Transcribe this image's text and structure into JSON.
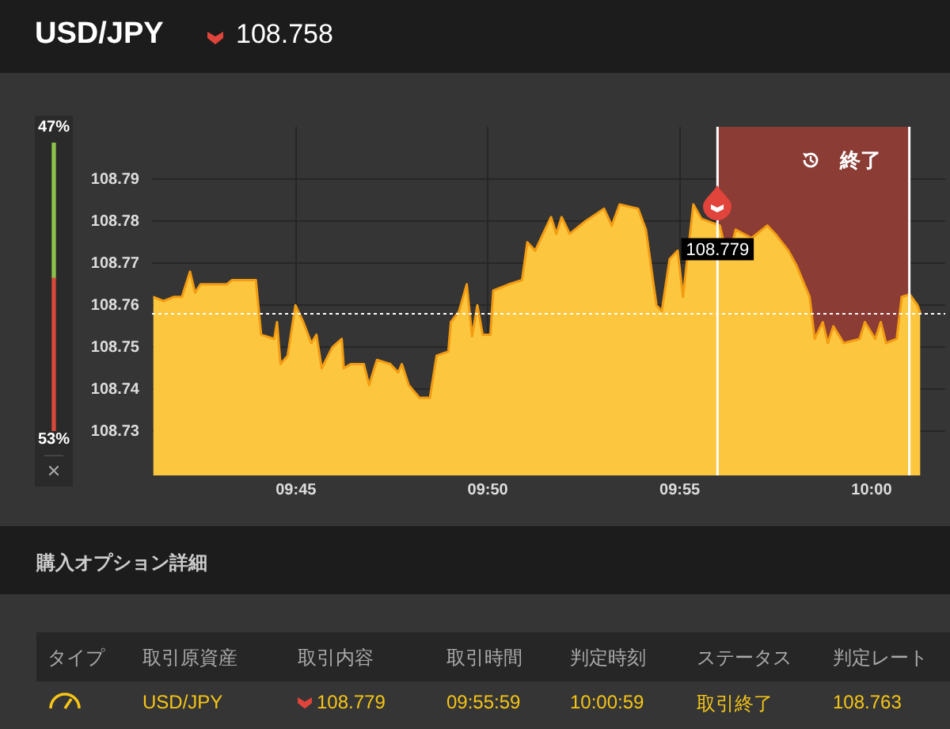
{
  "chart_data": [
    {
      "type": "area",
      "title": "USD/JPY",
      "subtitle": "108.758",
      "x": [
        9.688,
        9.6925,
        9.697,
        9.7005,
        9.704,
        9.7062,
        9.7086,
        9.72,
        9.7223,
        9.7326,
        9.7349,
        9.7406,
        9.7418,
        9.7433,
        9.7464,
        9.7498,
        9.7532,
        9.7567,
        9.7589,
        9.7612,
        9.7658,
        9.7699,
        9.7708,
        9.7738,
        9.7795,
        9.7818,
        9.7852,
        9.791,
        9.7944,
        9.796,
        9.799,
        9.8036,
        9.8082,
        9.8111,
        9.8162,
        9.8173,
        9.8208,
        9.8242,
        9.8265,
        9.8288,
        9.8311,
        9.8345,
        9.8357,
        9.8425,
        9.8482,
        9.8505,
        9.8539,
        9.8608,
        9.8631,
        9.8654,
        9.8689,
        9.8757,
        9.8838,
        9.8872,
        9.8906,
        9.8986,
        9.902,
        9.9066,
        9.9089,
        9.9123,
        9.9158,
        9.9181,
        9.9226,
        9.9261,
        9.9341,
        9.9376,
        9.941,
        9.9479,
        9.9547,
        9.9582,
        9.9639,
        9.9673,
        9.9731,
        9.9753,
        9.9788,
        9.981,
        9.9834,
        9.9879,
        9.9948,
        9.9971,
        10.0016,
        10.004,
        10.0063,
        10.0109,
        10.0131,
        10.0166,
        10.02,
        10.0212
      ],
      "series": [
        {
          "color": "#fcc63f",
          "values": [
            108.762,
            108.761,
            108.762,
            108.762,
            108.768,
            108.763,
            108.765,
            108.765,
            108.766,
            108.766,
            108.753,
            108.752,
            108.756,
            108.746,
            108.748,
            108.76,
            108.756,
            108.751,
            108.753,
            108.745,
            108.75,
            108.752,
            108.745,
            108.746,
            108.746,
            108.741,
            108.747,
            108.746,
            108.744,
            108.746,
            108.741,
            108.738,
            108.738,
            108.748,
            108.749,
            108.756,
            108.7585,
            108.765,
            108.7526,
            108.76,
            108.753,
            108.753,
            108.7635,
            108.765,
            108.766,
            108.775,
            108.773,
            108.781,
            108.777,
            108.781,
            108.777,
            108.78,
            108.783,
            108.779,
            108.784,
            108.783,
            108.778,
            108.76,
            108.7586,
            108.771,
            108.773,
            108.762,
            108.784,
            108.7806,
            108.779,
            108.771,
            108.778,
            108.776,
            108.779,
            108.777,
            108.773,
            108.7696,
            108.762,
            108.752,
            108.756,
            108.751,
            108.755,
            108.751,
            108.752,
            108.756,
            108.752,
            108.756,
            108.751,
            108.752,
            108.762,
            108.7626,
            108.76,
            108.758
          ]
        }
      ],
      "xlim": [
        9.6875,
        10.032
      ],
      "xticks": [
        {
          "value": 9.75,
          "label": "09:45"
        },
        {
          "value": 9.8333,
          "label": "09:50"
        },
        {
          "value": 9.9167,
          "label": "09:55"
        },
        {
          "value": 10.0,
          "label": "10:00"
        }
      ],
      "ylim": [
        108.7195,
        108.8025
      ],
      "yticks": [
        108.73,
        108.74,
        108.75,
        108.76,
        108.77,
        108.78,
        108.79
      ],
      "grid": true,
      "ref_lines": [
        {
          "axis": "y",
          "value": 108.758,
          "color": "#ffffff",
          "line_style": "dotted"
        },
        {
          "axis": "x",
          "value": 9.9331,
          "color": "#ffffff",
          "line_style": "solid"
        },
        {
          "axis": "x",
          "value": 10.0164,
          "color": "#ffffff",
          "line_style": "solid"
        }
      ],
      "bands": [
        {
          "axis": "x",
          "from": 9.9331,
          "to": 10.0164,
          "label": "終了",
          "color": "#8b3c35"
        }
      ],
      "annotations": [
        {
          "text": "108.779",
          "x": 9.9331,
          "y": 108.779
        }
      ]
    },
    {
      "type": "bar",
      "stacked": true,
      "categories": [
        null
      ],
      "ylim": [
        0,
        100
      ],
      "tick_labels": false,
      "series": [
        {
          "color": "#d9483b",
          "values": [
            53
          ],
          "value_labels": [
            "53%"
          ]
        },
        {
          "color": "#8bc34a",
          "values": [
            47
          ],
          "value_labels": [
            "47%"
          ]
        }
      ]
    },
    {
      "type": "other",
      "title": "購入オプション詳細",
      "annotations": [
        "タイプ",
        "取引原資産",
        "取引内容",
        "取引時間",
        "判定時刻",
        "ステータス",
        "判定レート",
        "USD/JPY",
        "108.779",
        "09:55:59",
        "10:00:59",
        "取引終了",
        "108.763"
      ]
    }
  ]
}
